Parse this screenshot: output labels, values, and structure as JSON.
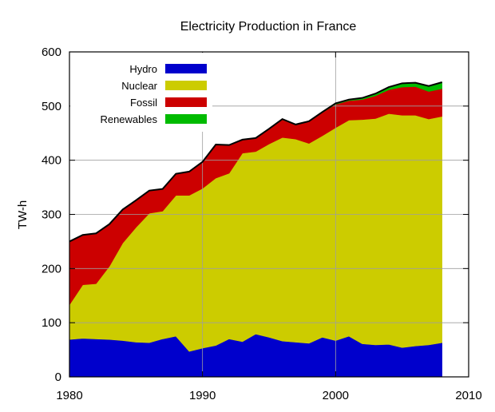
{
  "chart_data": {
    "type": "area",
    "stacked": true,
    "title": "Electricity Production in France",
    "xlabel": "",
    "ylabel": "TW-h",
    "xlim": [
      1980,
      2010
    ],
    "ylim": [
      0,
      600
    ],
    "xticks": [
      1980,
      1990,
      2000,
      2010
    ],
    "yticks": [
      0,
      100,
      200,
      300,
      400,
      500,
      600
    ],
    "grid": true,
    "legend_position": "top-left",
    "x": [
      1980,
      1981,
      1982,
      1983,
      1984,
      1985,
      1986,
      1987,
      1988,
      1989,
      1990,
      1991,
      1992,
      1993,
      1994,
      1995,
      1996,
      1997,
      1998,
      1999,
      2000,
      2001,
      2002,
      2003,
      2004,
      2005,
      2006,
      2007,
      2008
    ],
    "series": [
      {
        "name": "Hydro",
        "color": "#0000cc",
        "values": [
          69,
          71,
          70,
          69,
          67,
          64,
          63,
          70,
          75,
          47,
          53,
          58,
          70,
          65,
          79,
          73,
          66,
          64,
          62,
          73,
          67,
          75,
          61,
          59,
          60,
          54,
          57,
          59,
          63
        ]
      },
      {
        "name": "Nuclear",
        "color": "#cccc00",
        "values": [
          64,
          99,
          102,
          135,
          180,
          212,
          239,
          236,
          260,
          288,
          295,
          309,
          306,
          348,
          337,
          357,
          376,
          375,
          369,
          372,
          393,
          399,
          414,
          418,
          426,
          429,
          426,
          417,
          418
        ]
      },
      {
        "name": "Fossil",
        "color": "#cc0000",
        "values": [
          117,
          92,
          93,
          78,
          62,
          50,
          42,
          41,
          40,
          44,
          49,
          62,
          52,
          25,
          25,
          28,
          33,
          26,
          40,
          43,
          43,
          36,
          37,
          42,
          44,
          52,
          53,
          51,
          51
        ]
      },
      {
        "name": "Renewables",
        "color": "#00bb00",
        "values": [
          0,
          0,
          0,
          0,
          0,
          0,
          0,
          0,
          0,
          0,
          0,
          0,
          0,
          0,
          0,
          0,
          1,
          1,
          1,
          1,
          2,
          2,
          3,
          4,
          5,
          7,
          7,
          10,
          12
        ]
      }
    ]
  }
}
